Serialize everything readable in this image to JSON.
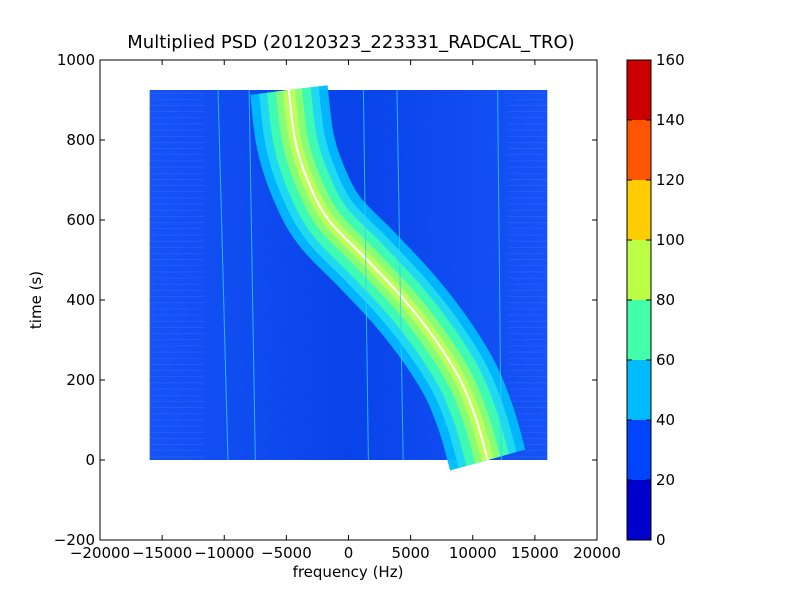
{
  "chart_data": {
    "type": "heatmap",
    "title": "Multiplied PSD (20120323_223331_RADCAL_TRO)",
    "xlabel": "frequency (Hz)",
    "ylabel": "time (s)",
    "xlim": [
      -20000,
      20000
    ],
    "ylim": [
      -200,
      1000
    ],
    "x_ticks": [
      -20000,
      -15000,
      -10000,
      -5000,
      0,
      5000,
      10000,
      15000,
      20000
    ],
    "x_tick_labels": [
      "−20000",
      "−15000",
      "−10000",
      "−5000",
      "0",
      "5000",
      "10000",
      "15000",
      "20000"
    ],
    "y_ticks": [
      -200,
      0,
      200,
      400,
      600,
      800,
      1000
    ],
    "y_tick_labels": [
      "−200",
      "0",
      "200",
      "400",
      "600",
      "800",
      "1000"
    ],
    "data_extent": {
      "x": [
        -16000,
        16000
      ],
      "y": [
        0,
        925
      ]
    },
    "background_level": 30,
    "trace": {
      "description_points": [
        {
          "time": 925,
          "frequency": -4800
        },
        {
          "time": 800,
          "frequency": -4300
        },
        {
          "time": 700,
          "frequency": -3300
        },
        {
          "time": 600,
          "frequency": -1600
        },
        {
          "time": 500,
          "frequency": 1500
        },
        {
          "time": 400,
          "frequency": 4500
        },
        {
          "time": 300,
          "frequency": 7000
        },
        {
          "time": 200,
          "frequency": 9000
        },
        {
          "time": 100,
          "frequency": 10300
        },
        {
          "time": 0,
          "frequency": 11200
        }
      ]
    },
    "colorbar": {
      "range": [
        0,
        160
      ],
      "levels": [
        0,
        20,
        40,
        60,
        80,
        100,
        120,
        140,
        160
      ],
      "tick_labels": [
        "0",
        "20",
        "40",
        "60",
        "80",
        "100",
        "120",
        "140",
        "160"
      ],
      "colors": [
        "#0000cc",
        "#0044ff",
        "#00bbff",
        "#44ffaa",
        "#bbff44",
        "#ffcc00",
        "#ff5500",
        "#cc0000"
      ]
    },
    "grid": false
  }
}
